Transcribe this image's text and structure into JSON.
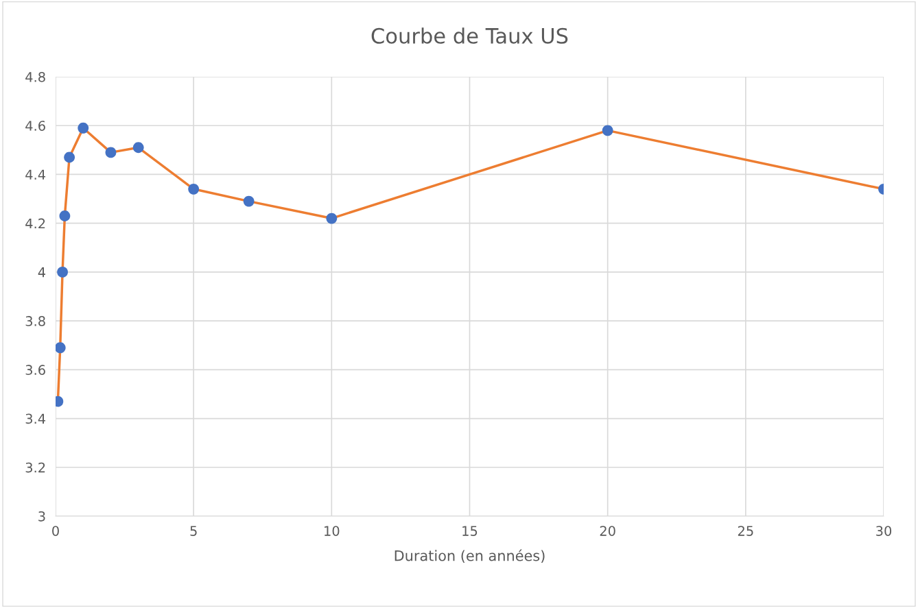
{
  "chart_data": {
    "type": "line",
    "title": "Courbe de Taux US",
    "xlabel": "Duration (en années)",
    "x": [
      0.083,
      0.167,
      0.25,
      0.333,
      0.5,
      1,
      2,
      3,
      5,
      7,
      10,
      20,
      30
    ],
    "series": [
      {
        "color": "#ed7d31",
        "colors": [
          "#4472c4",
          "#4472c4",
          "#4472c4",
          "#4472c4",
          "#4472c4",
          "#4472c4",
          "#4472c4",
          "#4472c4",
          "#4472c4",
          "#4472c4",
          "#4472c4",
          "#4472c4",
          "#4472c4"
        ],
        "values": [
          3.47,
          3.69,
          4.0,
          4.23,
          4.47,
          4.59,
          4.49,
          4.51,
          4.34,
          4.29,
          4.22,
          4.58,
          4.34
        ]
      }
    ],
    "xlim": [
      0,
      30
    ],
    "xticks": [
      0,
      5,
      10,
      15,
      20,
      25,
      30
    ],
    "ylim": [
      3,
      4.8
    ],
    "yticks": [
      {
        "value": 3,
        "label": "3"
      },
      {
        "value": 3.2,
        "label": "3.2"
      },
      {
        "value": 3.4,
        "label": "3.4"
      },
      {
        "value": 3.6,
        "label": "3.6"
      },
      {
        "value": 3.8,
        "label": "3.8"
      },
      {
        "value": 4,
        "label": "4"
      },
      {
        "value": 4.2,
        "label": "4.2"
      },
      {
        "value": 4.4,
        "label": "4.4"
      },
      {
        "value": 4.6,
        "label": "4.6"
      },
      {
        "value": 4.8,
        "label": "4.8"
      }
    ],
    "grid": true,
    "marker": "circle",
    "line_style": "solid"
  }
}
